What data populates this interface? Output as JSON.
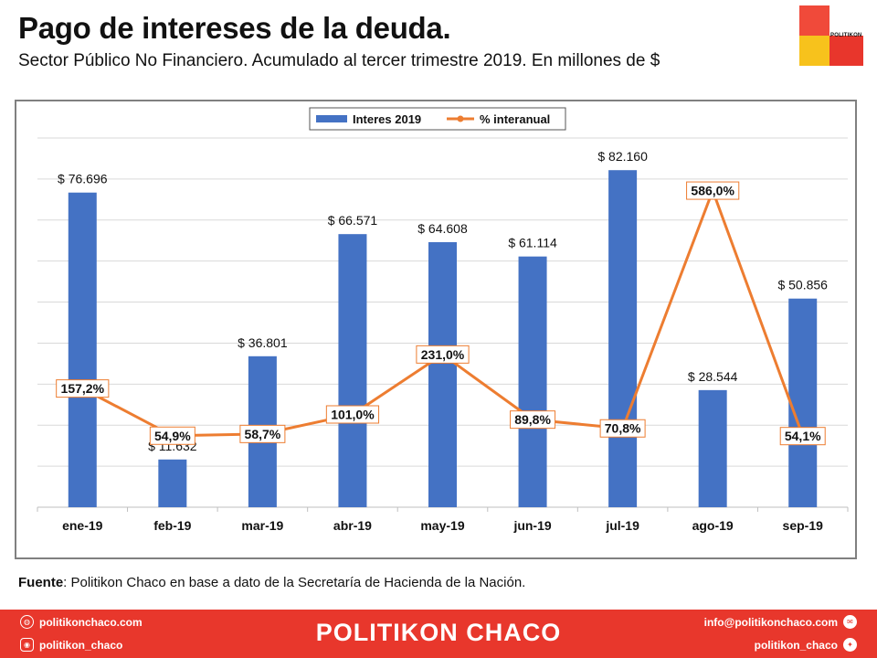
{
  "header": {
    "title": "Pago de intereses de la deuda.",
    "subtitle": "Sector Público No Financiero. Acumulado  al tercer trimestre 2019. En millones  de $",
    "logo_text": "POLITIKON"
  },
  "chart_data": {
    "type": "bar",
    "categories": [
      "ene-19",
      "feb-19",
      "mar-19",
      "abr-19",
      "may-19",
      "jun-19",
      "jul-19",
      "ago-19",
      "sep-19"
    ],
    "series": [
      {
        "name": "Interes 2019",
        "type": "bar",
        "color": "#4472c4",
        "values": [
          76696,
          11632,
          36801,
          66571,
          64608,
          61114,
          82160,
          28544,
          50856
        ],
        "labels": [
          "$ 76.696",
          "$ 11.632",
          "$ 36.801",
          "$ 66.571",
          "$ 64.608",
          "$ 61.114",
          "$ 82.160",
          "$ 28.544",
          "$ 50.856"
        ]
      },
      {
        "name": "% interanual",
        "type": "line",
        "color": "#ed7d31",
        "values": [
          157.2,
          54.9,
          58.7,
          101.0,
          231.0,
          89.8,
          70.8,
          586.0,
          54.1
        ],
        "labels": [
          "157,2%",
          "54,9%",
          "58,7%",
          "101,0%",
          "231,0%",
          "89,8%",
          "70,8%",
          "586,0%",
          "54,1%"
        ]
      }
    ],
    "legend_position": "top",
    "grid": true,
    "ylim": [
      0,
      90000
    ],
    "y2lim": [
      -100,
      700
    ]
  },
  "source": {
    "label": "Fuente",
    "text": ":  Politikon  Chaco  en  base  a  dato  de  la  Secretaría  de  Hacienda  de  la  Nación."
  },
  "footer": {
    "brand": "POLITIKON CHACO",
    "website": "politikonchaco.com",
    "instagram": "politikon_chaco",
    "email": "info@politikonchaco.com",
    "twitter": "politikon_chaco",
    "colors": {
      "brand_red": "#e8372c",
      "brand_yellow": "#f7c21c"
    }
  }
}
